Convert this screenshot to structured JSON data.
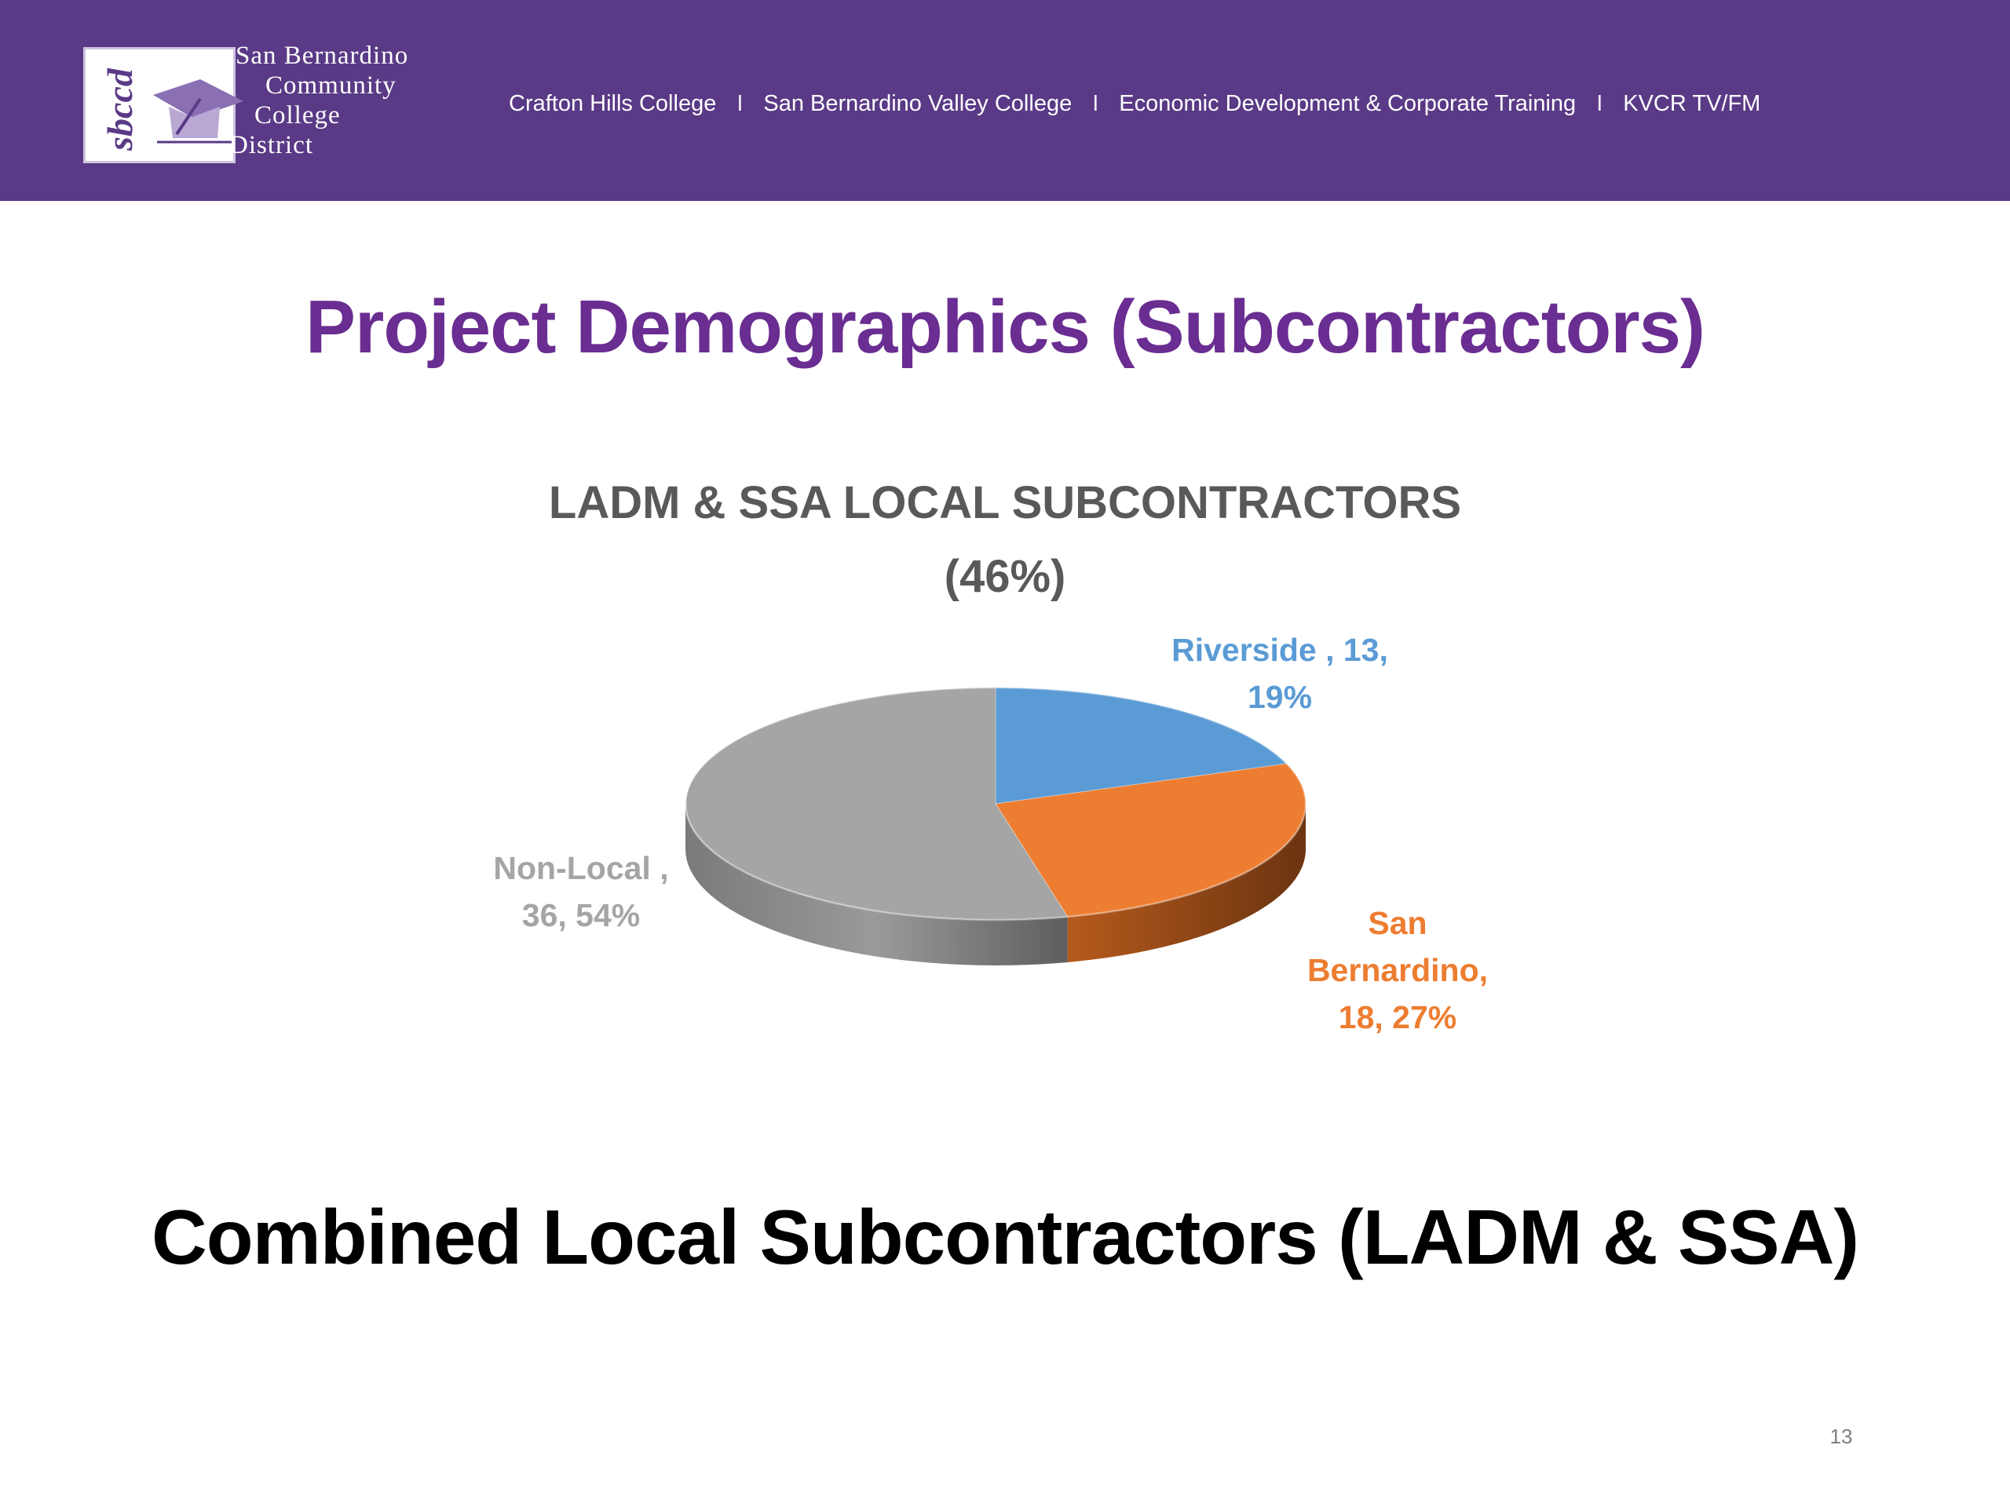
{
  "header": {
    "district_lines": [
      "San Bernardino",
      "Community",
      "College",
      "District"
    ],
    "logo_monogram": "sbccd",
    "nav_items": [
      "Crafton Hills College",
      "San Bernardino Valley College",
      "Economic Development & Corporate Training",
      "KVCR TV/FM"
    ],
    "nav_separator": "I",
    "bar_color": "#5a3a86"
  },
  "slide": {
    "title": "Project Demographics (Subcontractors)",
    "bottom_title": "Combined Local Subcontractors (LADM & SSA)",
    "page_number": "13"
  },
  "chart_data": {
    "type": "pie",
    "style": "3d",
    "title_lines": [
      "LADM & SSA LOCAL SUBCONTRACTORS",
      "(46%)"
    ],
    "categories": [
      "Riverside",
      "San Bernardino",
      "Non-Local"
    ],
    "values": [
      13,
      18,
      36
    ],
    "percents": [
      19,
      27,
      54
    ],
    "colors": [
      "#5b9bd5",
      "#ed7d31",
      "#a5a5a5"
    ],
    "labels": [
      {
        "lines": [
          "Riverside , 13,",
          "19%"
        ],
        "color": "#5b9bd5"
      },
      {
        "lines": [
          "San",
          "Bernardino,",
          "18, 27%"
        ],
        "color": "#ed7d31"
      },
      {
        "lines": [
          "Non-Local ,",
          "36, 54%"
        ],
        "color": "#a5a5a5"
      }
    ]
  }
}
